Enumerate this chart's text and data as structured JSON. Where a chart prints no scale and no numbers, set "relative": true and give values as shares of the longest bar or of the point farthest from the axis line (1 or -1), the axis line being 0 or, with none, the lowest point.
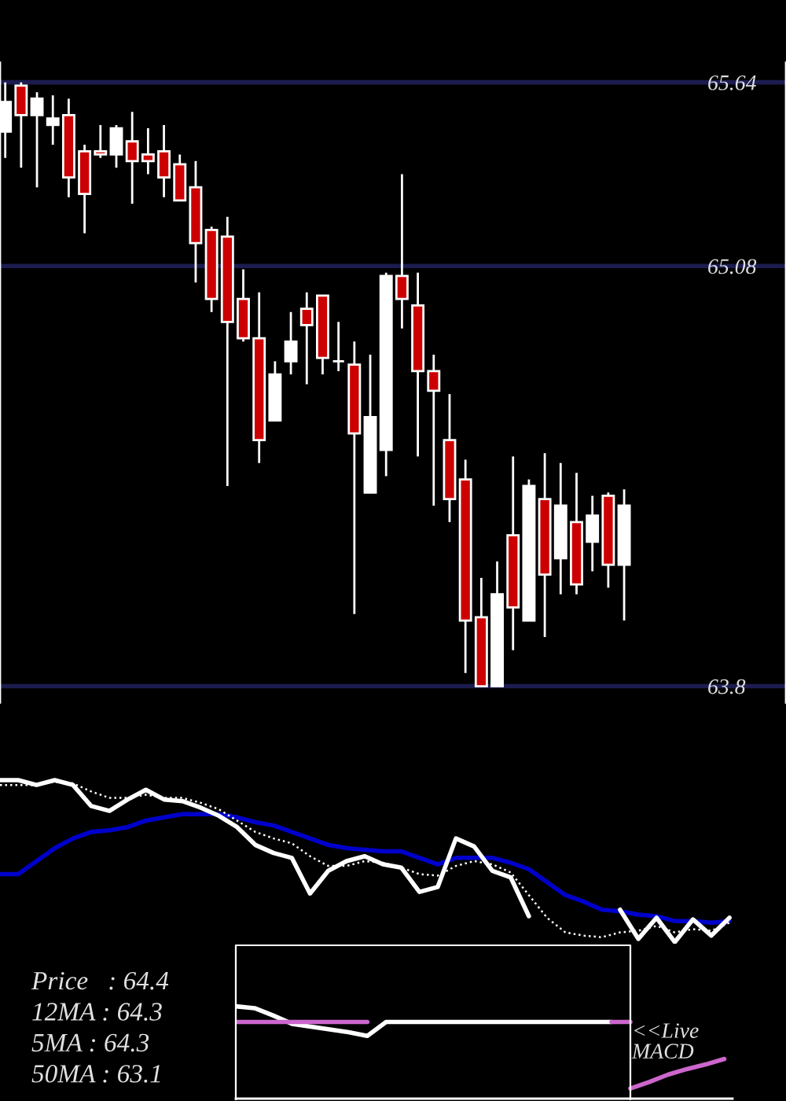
{
  "chart_data": [
    {
      "type": "candlestick",
      "categories": [
        null,
        null,
        null,
        null,
        null,
        null,
        null,
        null,
        null,
        null,
        null,
        null,
        null,
        null,
        null,
        null,
        null,
        null,
        null,
        null,
        null,
        null,
        null,
        null,
        null,
        null,
        null,
        null,
        null,
        null,
        null,
        null,
        null,
        null,
        null,
        null,
        null,
        null,
        null,
        null
      ],
      "ohlc": [
        [
          65.49,
          65.64,
          65.41,
          65.58
        ],
        [
          65.63,
          65.64,
          65.38,
          65.54
        ],
        [
          65.54,
          65.61,
          65.32,
          65.59
        ],
        [
          65.51,
          65.6,
          65.45,
          65.53
        ],
        [
          65.54,
          65.59,
          65.29,
          65.35
        ],
        [
          65.43,
          65.45,
          65.18,
          65.3
        ],
        [
          65.43,
          65.51,
          65.41,
          65.42
        ],
        [
          65.42,
          65.51,
          65.38,
          65.5
        ],
        [
          65.46,
          65.55,
          65.27,
          65.4
        ],
        [
          65.42,
          65.5,
          65.36,
          65.4
        ],
        [
          65.43,
          65.51,
          65.29,
          65.35
        ],
        [
          65.39,
          65.42,
          65.28,
          65.28
        ],
        [
          65.32,
          65.4,
          65.03,
          65.15
        ],
        [
          65.19,
          65.2,
          64.94,
          64.98
        ],
        [
          65.17,
          65.23,
          64.41,
          64.91
        ],
        [
          64.98,
          65.07,
          64.85,
          64.86
        ],
        [
          64.86,
          65.0,
          64.48,
          64.55
        ],
        [
          64.61,
          64.79,
          64.61,
          64.75
        ],
        [
          64.79,
          64.94,
          64.75,
          64.85
        ],
        [
          64.95,
          65.0,
          64.72,
          64.9
        ],
        [
          64.99,
          64.99,
          64.75,
          64.8
        ],
        [
          64.79,
          64.91,
          64.76,
          64.79
        ],
        [
          64.78,
          64.85,
          64.02,
          64.57
        ],
        [
          64.39,
          64.81,
          64.39,
          64.62
        ],
        [
          64.52,
          65.06,
          64.44,
          65.05
        ],
        [
          65.05,
          65.36,
          64.89,
          64.98
        ],
        [
          64.96,
          65.06,
          64.5,
          64.76
        ],
        [
          64.76,
          64.81,
          64.35,
          64.7
        ],
        [
          64.55,
          64.69,
          64.3,
          64.37
        ],
        [
          64.43,
          64.49,
          63.84,
          64.0
        ],
        [
          64.01,
          64.13,
          63.8,
          63.8
        ],
        [
          63.8,
          64.18,
          63.8,
          64.08
        ],
        [
          64.26,
          64.5,
          63.91,
          64.04
        ],
        [
          64.0,
          64.43,
          64.0,
          64.41
        ],
        [
          64.37,
          64.51,
          63.95,
          64.14
        ],
        [
          64.19,
          64.48,
          64.08,
          64.35
        ],
        [
          64.3,
          64.45,
          64.08,
          64.11
        ],
        [
          64.24,
          64.38,
          64.15,
          64.32
        ],
        [
          64.38,
          64.39,
          64.1,
          64.17
        ],
        [
          64.17,
          64.4,
          64.0,
          64.35
        ]
      ],
      "colors": [
        "#ffffff",
        "#cc0000",
        "#ffffff",
        "#ffffff",
        "#cc0000",
        "#cc0000",
        "#cc0000",
        "#ffffff",
        "#cc0000",
        "#cc0000",
        "#cc0000",
        "#cc0000",
        "#cc0000",
        "#cc0000",
        "#cc0000",
        "#cc0000",
        "#cc0000",
        "#ffffff",
        "#ffffff",
        "#cc0000",
        "#cc0000",
        "#ffffff",
        "#cc0000",
        "#ffffff",
        "#ffffff",
        "#cc0000",
        "#cc0000",
        "#cc0000",
        "#cc0000",
        "#cc0000",
        "#cc0000",
        "#ffffff",
        "#cc0000",
        "#ffffff",
        "#cc0000",
        "#ffffff",
        "#cc0000",
        "#ffffff",
        "#cc0000",
        "#ffffff"
      ],
      "ylim": [
        63.75,
        65.7
      ],
      "yticks": [
        63.8,
        65.08,
        65.64
      ],
      "grid": "y",
      "tick_labels": "y"
    },
    {
      "type": "line",
      "relative": true,
      "tick_labels": false,
      "categories": [
        null,
        null,
        null,
        null,
        null,
        null,
        null,
        null,
        null,
        null,
        null,
        null,
        null,
        null,
        null,
        null,
        null,
        null,
        null,
        null,
        null,
        null,
        null,
        null,
        null,
        null,
        null,
        null,
        null,
        null,
        null,
        null,
        null,
        null,
        null,
        null,
        null,
        null,
        null,
        null,
        null
      ],
      "series": [
        {
          "color": "#0000cc",
          "line_style": "solid",
          "values": [
            0.42,
            0.42,
            0.5,
            0.58,
            0.64,
            0.68,
            0.69,
            0.71,
            0.75,
            0.77,
            0.79,
            0.79,
            0.79,
            0.77,
            0.74,
            0.72,
            0.68,
            0.64,
            0.6,
            0.58,
            0.57,
            0.56,
            0.56,
            0.52,
            0.48,
            0.52,
            0.52,
            0.52,
            0.49,
            0.45,
            0.37,
            0.29,
            0.25,
            0.2,
            0.19,
            0.17,
            0.16,
            0.13,
            0.13,
            0.12,
            0.13
          ]
        },
        {
          "color": "#ffffff",
          "line_style": "dotted",
          "values": [
            0.97,
            0.97,
            0.97,
            0.99,
            0.98,
            0.93,
            0.89,
            0.89,
            0.91,
            0.89,
            0.89,
            0.86,
            0.82,
            0.75,
            0.68,
            0.64,
            0.61,
            0.53,
            0.47,
            0.47,
            0.5,
            0.49,
            0.46,
            0.42,
            0.41,
            0.47,
            0.5,
            0.48,
            0.43,
            0.29,
            0.15,
            0.06,
            0.04,
            0.03,
            0.06,
            0.07,
            0.1,
            0.06,
            0.08,
            0.07,
            0.12
          ]
        },
        {
          "color": "#ffffff",
          "line_style": "solid",
          "values": [
            1.0,
            1.0,
            0.97,
            1.0,
            0.97,
            0.84,
            0.81,
            0.88,
            0.94,
            0.88,
            0.87,
            0.83,
            0.78,
            0.71,
            0.6,
            0.55,
            0.52,
            0.3,
            0.44,
            0.5,
            0.53,
            0.48,
            0.46,
            0.31,
            0.34,
            0.64,
            0.59,
            0.44,
            0.4,
            0.16,
            null,
            null,
            null,
            null,
            0.2,
            0.02,
            0.15,
            0.0,
            0.14,
            0.04,
            0.15
          ]
        }
      ],
      "annotations": [
        "Price   : 64.4",
        "12MA : 64.3",
        "5MA : 64.3",
        "50MA : 63.1"
      ]
    },
    {
      "type": "line",
      "relative": true,
      "tick_labels": false,
      "categories": [
        null,
        null,
        null,
        null,
        null,
        null,
        null,
        null,
        null,
        null,
        null,
        null,
        null,
        null,
        null,
        null,
        null,
        null,
        null,
        null,
        null,
        null,
        null,
        null,
        null,
        null,
        null
      ],
      "series": [
        {
          "color": "#ffffff",
          "line_style": "solid",
          "values": [
            1.0,
            0.98,
            0.9,
            0.81,
            0.78,
            0.75,
            0.72,
            0.68,
            0.83,
            0.83,
            0.83,
            0.83,
            0.83,
            0.83,
            0.83,
            0.83,
            0.83,
            0.83,
            0.83,
            0.83,
            0.83,
            null,
            null,
            null,
            null,
            null,
            null
          ]
        },
        {
          "color": "#cc66cc",
          "line_style": "solid",
          "values": [
            0.83,
            0.83,
            0.83,
            0.83,
            0.83,
            0.83,
            0.83,
            0.83,
            null,
            null,
            null,
            null,
            null,
            null,
            null,
            null,
            null,
            null,
            null,
            null,
            0.83,
            0.83,
            null,
            null,
            null,
            null,
            null
          ]
        },
        {
          "color": "#cc66cc",
          "line_style": "solid",
          "values": [
            null,
            null,
            null,
            null,
            null,
            null,
            null,
            null,
            null,
            null,
            null,
            null,
            null,
            null,
            null,
            null,
            null,
            null,
            null,
            null,
            null,
            0.11,
            0.18,
            0.26,
            0.32,
            0.37,
            0.43
          ]
        }
      ],
      "annotations": [
        "<<Live\nMACD"
      ]
    }
  ]
}
